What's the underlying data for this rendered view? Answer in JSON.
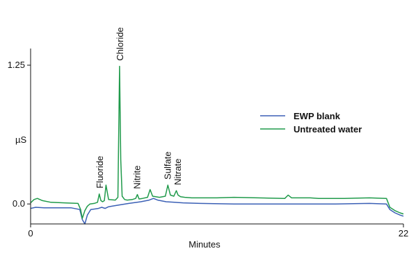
{
  "chart_data": {
    "type": "line",
    "title": "",
    "xlabel": "Minutes",
    "ylabel": "µS",
    "xlim": [
      0,
      22
    ],
    "ylim": [
      -0.18,
      1.4
    ],
    "x_ticks": [
      {
        "value": 0,
        "label": "0"
      },
      {
        "value": 22,
        "label": "22"
      }
    ],
    "y_ticks": [
      {
        "value": 1.25,
        "label": "1.25"
      },
      {
        "value": 0.0,
        "label": "0.0"
      }
    ],
    "legend_position": "right",
    "grid": false,
    "series": [
      {
        "name": "EWP blank",
        "color": "#3a5fb5",
        "x": [
          0.0,
          0.3,
          0.8,
          1.5,
          2.4,
          2.9,
          3.05,
          3.2,
          3.35,
          3.55,
          3.8,
          4.0,
          4.2,
          4.4,
          4.6,
          4.8,
          5.2,
          5.8,
          6.5,
          7.0,
          7.25,
          7.5,
          8.0,
          9.0,
          10.0,
          12.0,
          14.0,
          16.0,
          18.0,
          20.0,
          21.0,
          21.2,
          21.5,
          21.8,
          22.0
        ],
        "y": [
          -0.04,
          -0.03,
          -0.035,
          -0.035,
          -0.035,
          -0.05,
          -0.14,
          -0.18,
          -0.1,
          -0.05,
          -0.045,
          -0.04,
          -0.03,
          -0.04,
          -0.025,
          -0.02,
          -0.01,
          0.005,
          0.02,
          0.035,
          0.05,
          0.035,
          0.02,
          0.01,
          0.005,
          0.0,
          0.0,
          0.0,
          0.0,
          0.005,
          0.0,
          -0.05,
          -0.08,
          -0.1,
          -0.11
        ]
      },
      {
        "name": "Untreated water",
        "color": "#1f9a4a",
        "x": [
          0.0,
          0.2,
          0.4,
          0.7,
          1.2,
          2.0,
          2.8,
          2.95,
          3.05,
          3.2,
          3.35,
          3.5,
          3.75,
          3.95,
          4.05,
          4.15,
          4.25,
          4.35,
          4.45,
          4.6,
          5.0,
          5.15,
          5.25,
          5.32,
          5.4,
          5.55,
          5.7,
          6.0,
          6.2,
          6.3,
          6.4,
          6.6,
          6.9,
          7.05,
          7.2,
          7.6,
          7.95,
          8.1,
          8.25,
          8.45,
          8.6,
          8.7,
          8.85,
          9.1,
          9.5,
          11.0,
          12.0,
          15.0,
          15.2,
          15.4,
          16.5,
          17.0,
          18.5,
          20.0,
          21.0,
          21.2,
          21.5,
          21.8,
          22.0
        ],
        "y": [
          0.01,
          0.04,
          0.05,
          0.03,
          0.015,
          0.01,
          0.005,
          -0.05,
          -0.13,
          -0.06,
          -0.02,
          0.0,
          0.005,
          0.015,
          0.09,
          0.03,
          0.02,
          0.03,
          0.17,
          0.04,
          0.035,
          0.06,
          1.24,
          0.4,
          0.07,
          0.04,
          0.035,
          0.04,
          0.05,
          0.085,
          0.045,
          0.05,
          0.06,
          0.13,
          0.07,
          0.06,
          0.07,
          0.17,
          0.08,
          0.07,
          0.12,
          0.08,
          0.065,
          0.06,
          0.055,
          0.055,
          0.06,
          0.05,
          0.08,
          0.055,
          0.055,
          0.05,
          0.05,
          0.055,
          0.05,
          -0.03,
          -0.06,
          -0.08,
          -0.09
        ]
      }
    ],
    "annotations": [
      {
        "text": "Fluoride",
        "x": 4.1,
        "y": 0.09
      },
      {
        "text": "Chloride",
        "x": 5.3,
        "y": 1.24
      },
      {
        "text": "Nitrite",
        "x": 6.3,
        "y": 0.085
      },
      {
        "text": "Sulfate",
        "x": 8.1,
        "y": 0.17
      },
      {
        "text": "Nitrate",
        "x": 8.7,
        "y": 0.12
      }
    ]
  }
}
